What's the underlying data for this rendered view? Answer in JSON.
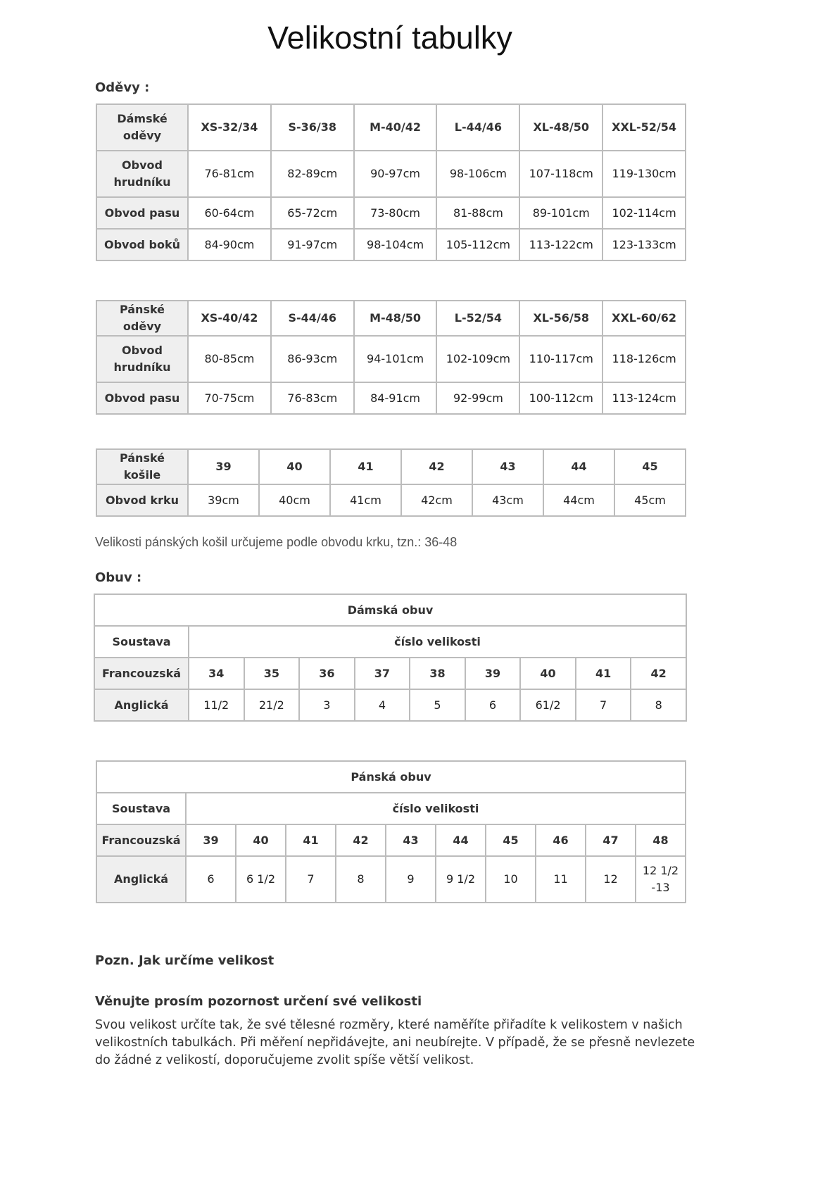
{
  "title": "Velikostní tabulky",
  "clothes_heading": "Oděvy :",
  "womens_clothes": {
    "header": [
      "Dámské oděvy",
      "XS-32/34",
      "S-36/38",
      "M-40/42",
      "L-44/46",
      "XL-48/50",
      "XXL-52/54"
    ],
    "rows": [
      [
        "Obvod hrudníku",
        "76-81cm",
        "82-89cm",
        "90-97cm",
        "98-106cm",
        "107-118cm",
        "119-130cm"
      ],
      [
        "Obvod pasu",
        "60-64cm",
        "65-72cm",
        "73-80cm",
        "81-88cm",
        "89-101cm",
        "102-114cm"
      ],
      [
        "Obvod boků",
        "84-90cm",
        "91-97cm",
        "98-104cm",
        "105-112cm",
        "113-122cm",
        "123-133cm"
      ]
    ]
  },
  "mens_clothes": {
    "header": [
      "Pánské oděvy",
      "XS-40/42",
      "S-44/46",
      "M-48/50",
      "L-52/54",
      "XL-56/58",
      "XXL-60/62"
    ],
    "rows": [
      [
        "Obvod hrudníku",
        "80-85cm",
        "86-93cm",
        "94-101cm",
        "102-109cm",
        "110-117cm",
        "118-126cm"
      ],
      [
        "Obvod pasu",
        "70-75cm",
        "76-83cm",
        "84-91cm",
        "92-99cm",
        "100-112cm",
        "113-124cm"
      ]
    ]
  },
  "mens_shirts": {
    "header": [
      "Pánské košile",
      "39",
      "40",
      "41",
      "42",
      "43",
      "44",
      "45"
    ],
    "rows": [
      [
        "Obvod krku",
        "39cm",
        "40cm",
        "41cm",
        "42cm",
        "43cm",
        "44cm",
        "45cm"
      ]
    ]
  },
  "shirts_note": "Velikosti pánských košil určujeme podle obvodu krku, tzn.: 36-48",
  "shoes_heading": "Obuv :",
  "womens_shoes": {
    "title": "Dámská obuv",
    "system_label": "Soustava",
    "size_label": "číslo velikosti",
    "rows": [
      [
        "Francouzská",
        "34",
        "35",
        "36",
        "37",
        "38",
        "39",
        "40",
        "41",
        "42"
      ],
      [
        "Anglická",
        "11/2",
        "21/2",
        "3",
        "4",
        "5",
        "6",
        "61/2",
        "7",
        "8"
      ]
    ]
  },
  "mens_shoes": {
    "title": "Pánská obuv",
    "system_label": "Soustava",
    "size_label": "číslo velikosti",
    "rows": [
      [
        "Francouzská",
        "39",
        "40",
        "41",
        "42",
        "43",
        "44",
        "45",
        "46",
        "47",
        "48"
      ],
      [
        "Anglická",
        "6",
        "6 1/2",
        "7",
        "8",
        "9",
        "9 1/2",
        "10",
        "11",
        "12",
        "12 1/2 -13"
      ]
    ]
  },
  "note_heading": "Pozn. Jak určíme velikost",
  "note_subheading": "Věnujte prosím pozornost určení své velikosti",
  "note_text": "Svou velikost určíte tak, že své tělesné rozměry, které naměříte přiřadíte k velikostem v našich velikostních tabulkách. Při měření nepřidávejte, ani neubírejte. V případě, že se přesně nevlezete do žádné z velikostí, doporučujeme zvolit spíše větší velikost."
}
